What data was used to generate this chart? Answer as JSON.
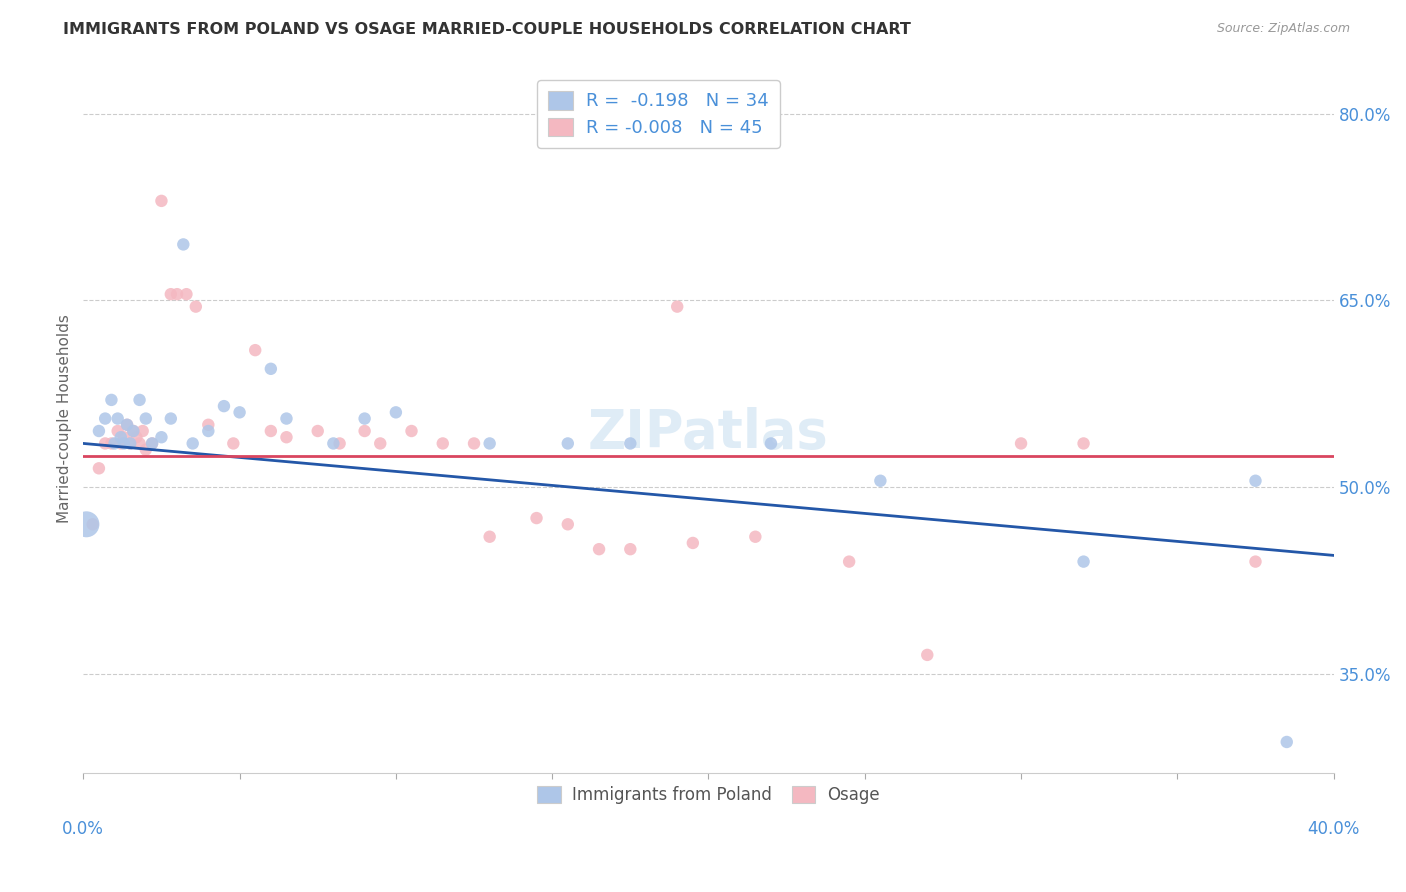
{
  "title": "IMMIGRANTS FROM POLAND VS OSAGE MARRIED-COUPLE HOUSEHOLDS CORRELATION CHART",
  "source": "Source: ZipAtlas.com",
  "ylabel": "Married-couple Households",
  "yticks": [
    35.0,
    50.0,
    65.0,
    80.0
  ],
  "legend_blue_r": "R =  -0.198",
  "legend_blue_n": "N = 34",
  "legend_pink_r": "R = -0.008",
  "legend_pink_n": "N = 45",
  "legend_blue_label": "Immigrants from Poland",
  "legend_pink_label": "Osage",
  "blue_color": "#aec6e8",
  "pink_color": "#f4b8c1",
  "blue_line_color": "#2457a8",
  "pink_line_color": "#d9455f",
  "title_color": "#333333",
  "axis_label_color": "#666666",
  "tick_color": "#4a90d9",
  "background_color": "#ffffff",
  "grid_color": "#cccccc",
  "blue_line_x0": 0.0,
  "blue_line_y0": 0.535,
  "blue_line_x1": 0.4,
  "blue_line_y1": 0.445,
  "pink_line_x0": 0.0,
  "pink_line_y0": 0.525,
  "pink_line_x1": 0.4,
  "pink_line_y1": 0.525,
  "blue_points_x": [
    0.001,
    0.005,
    0.007,
    0.009,
    0.01,
    0.011,
    0.012,
    0.013,
    0.014,
    0.015,
    0.016,
    0.018,
    0.02,
    0.022,
    0.025,
    0.028,
    0.032,
    0.035,
    0.04,
    0.045,
    0.05,
    0.06,
    0.065,
    0.08,
    0.09,
    0.1,
    0.13,
    0.155,
    0.175,
    0.22,
    0.255,
    0.32,
    0.375,
    0.385
  ],
  "blue_points_y": [
    0.47,
    0.545,
    0.555,
    0.57,
    0.535,
    0.555,
    0.54,
    0.535,
    0.55,
    0.535,
    0.545,
    0.57,
    0.555,
    0.535,
    0.54,
    0.555,
    0.695,
    0.535,
    0.545,
    0.565,
    0.56,
    0.595,
    0.555,
    0.535,
    0.555,
    0.56,
    0.535,
    0.535,
    0.535,
    0.535,
    0.505,
    0.44,
    0.505,
    0.295
  ],
  "blue_sizes": [
    350,
    80,
    80,
    80,
    80,
    80,
    80,
    80,
    80,
    80,
    80,
    80,
    80,
    80,
    80,
    80,
    80,
    80,
    80,
    80,
    80,
    80,
    80,
    80,
    80,
    80,
    80,
    80,
    80,
    80,
    80,
    80,
    80,
    80
  ],
  "pink_points_x": [
    0.003,
    0.005,
    0.007,
    0.009,
    0.011,
    0.012,
    0.013,
    0.014,
    0.015,
    0.016,
    0.017,
    0.018,
    0.019,
    0.02,
    0.022,
    0.025,
    0.028,
    0.03,
    0.033,
    0.036,
    0.04,
    0.048,
    0.055,
    0.06,
    0.065,
    0.075,
    0.082,
    0.09,
    0.095,
    0.105,
    0.115,
    0.125,
    0.13,
    0.145,
    0.155,
    0.165,
    0.175,
    0.19,
    0.195,
    0.215,
    0.245,
    0.27,
    0.3,
    0.32,
    0.375
  ],
  "pink_points_y": [
    0.47,
    0.515,
    0.535,
    0.535,
    0.545,
    0.535,
    0.54,
    0.55,
    0.535,
    0.545,
    0.54,
    0.535,
    0.545,
    0.53,
    0.535,
    0.73,
    0.655,
    0.655,
    0.655,
    0.645,
    0.55,
    0.535,
    0.61,
    0.545,
    0.54,
    0.545,
    0.535,
    0.545,
    0.535,
    0.545,
    0.535,
    0.535,
    0.46,
    0.475,
    0.47,
    0.45,
    0.45,
    0.645,
    0.455,
    0.46,
    0.44,
    0.365,
    0.535,
    0.535,
    0.44
  ],
  "pink_sizes": [
    80,
    80,
    80,
    80,
    80,
    80,
    80,
    80,
    80,
    80,
    80,
    80,
    80,
    80,
    80,
    80,
    80,
    80,
    80,
    80,
    80,
    80,
    80,
    80,
    80,
    80,
    80,
    80,
    80,
    80,
    80,
    80,
    80,
    80,
    80,
    80,
    80,
    80,
    80,
    80,
    80,
    80,
    80,
    80,
    80
  ],
  "xmin": 0.0,
  "xmax": 0.4,
  "ymin": 0.27,
  "ymax": 0.84
}
